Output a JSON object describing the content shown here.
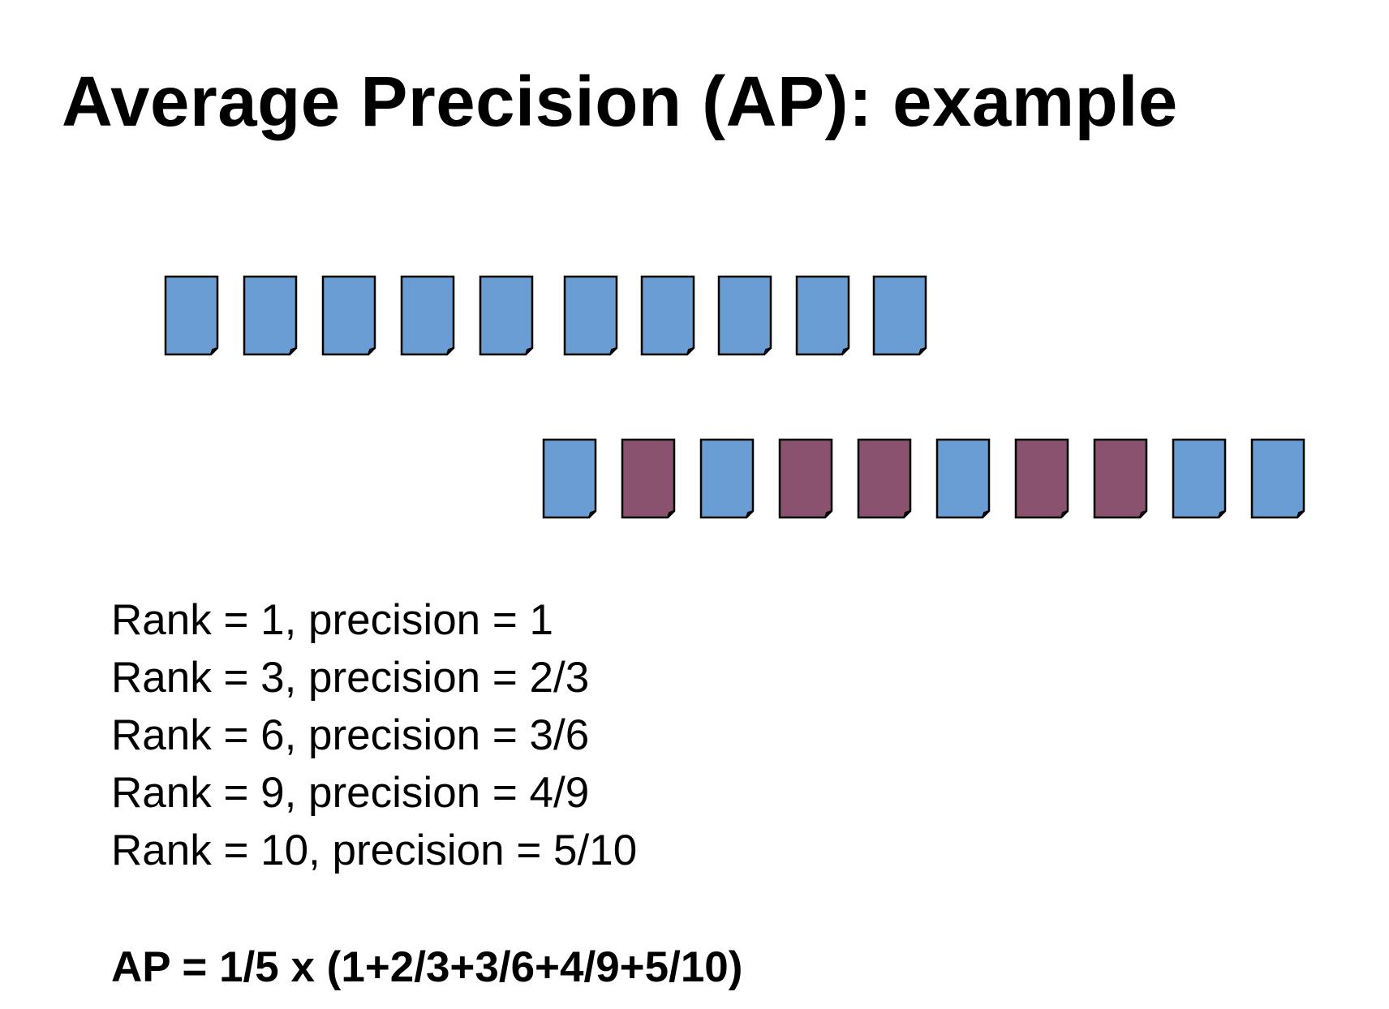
{
  "title": "Average Precision (AP): example",
  "colors": {
    "relevant": "#6a9dd3",
    "nonrelevant": "#8b526f",
    "outline": "#000000"
  },
  "relevant_docs": [
    "relevant",
    "relevant",
    "relevant",
    "relevant",
    "relevant",
    "relevant",
    "relevant",
    "relevant",
    "relevant",
    "relevant"
  ],
  "ranked_results": [
    "relevant",
    "nonrelevant",
    "relevant",
    "nonrelevant",
    "nonrelevant",
    "relevant",
    "nonrelevant",
    "nonrelevant",
    "relevant",
    "relevant"
  ],
  "steps": [
    "Rank = 1, precision = 1",
    "Rank = 3, precision = 2/3",
    "Rank = 6, precision = 3/6",
    "Rank = 9, precision = 4/9",
    "Rank = 10, precision = 5/10"
  ],
  "formula": "AP = 1/5 x (1+2/3+3/6+4/9+5/10)"
}
